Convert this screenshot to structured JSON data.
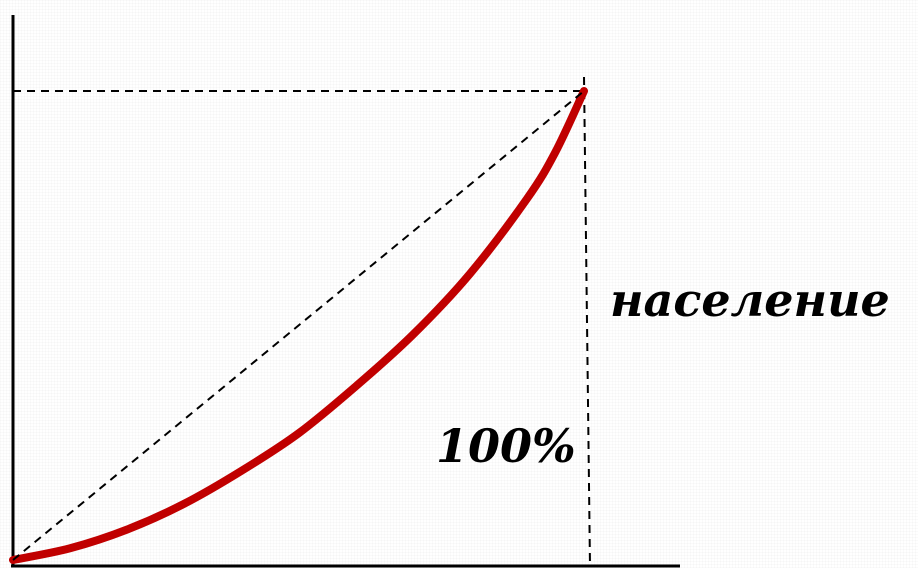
{
  "chart_data": {
    "type": "line",
    "title": "",
    "xlabel": "население",
    "ylabel": "",
    "xlim": [
      0,
      100
    ],
    "ylim": [
      0,
      100
    ],
    "grid": false,
    "annotations": [
      "100%"
    ],
    "series": [
      {
        "kind": "lorenz-curve",
        "color": "#c00000",
        "x": [
          0,
          10,
          20,
          30,
          40,
          50,
          60,
          70,
          80,
          90,
          95,
          100
        ],
        "y": [
          0,
          2.5,
          6.5,
          12,
          19,
          27,
          37,
          48,
          61,
          77,
          87,
          100
        ]
      },
      {
        "kind": "equality-line",
        "style": "dashed",
        "color": "#000000",
        "x": [
          0,
          100
        ],
        "y": [
          0,
          100
        ]
      }
    ],
    "guides": [
      {
        "kind": "horizontal-dashed",
        "y": 100,
        "x_from": 0,
        "x_to": 100
      },
      {
        "kind": "vertical-dashed",
        "x": 100,
        "y_from": 0,
        "y_to": 100
      }
    ]
  }
}
